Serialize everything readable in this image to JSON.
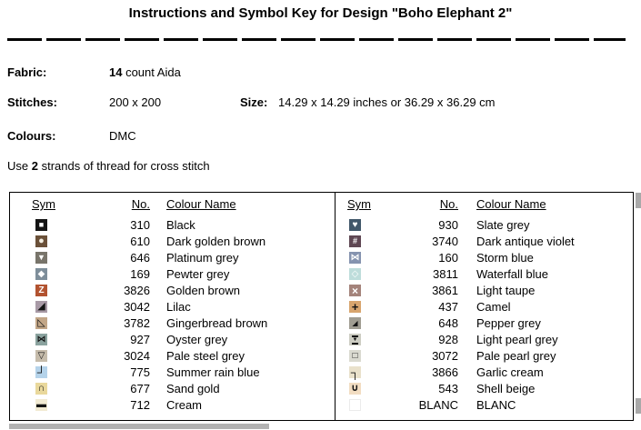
{
  "title": "Instructions and Symbol Key for Design \"Boho Elephant 2\"",
  "info": {
    "fabric_label": "Fabric:",
    "fabric_bold": "14",
    "fabric_rest": " count Aida",
    "stitches_label": "Stitches:",
    "stitches_value": "200 x 200",
    "size_label": "Size:",
    "size_value": "14.29 x 14.29 inches or 36.29 x 36.29 cm",
    "colours_label": "Colours:",
    "colours_value": "DMC",
    "strands_pre": "Use ",
    "strands_bold": "2",
    "strands_post": " strands of thread for cross stitch"
  },
  "key_table": {
    "headers": {
      "sym": "Sym",
      "no": "No.",
      "name": "Colour Name"
    },
    "left_rows": [
      {
        "glyph": "■",
        "gs": 9,
        "fg": "#ffffff",
        "bg": "#141414",
        "no": "310",
        "name": "Black"
      },
      {
        "glyph": "●",
        "gs": 11,
        "fg": "#f3eee2",
        "bg": "#6b5139",
        "no": "610",
        "name": "Dark golden brown"
      },
      {
        "glyph": "▼",
        "gs": 9,
        "fg": "#ffffff",
        "bg": "#78746a",
        "no": "646",
        "name": "Platinum grey"
      },
      {
        "glyph": "◆",
        "gs": 10,
        "fg": "#ffffff",
        "bg": "#7e8e9a",
        "no": "169",
        "name": "Pewter grey"
      },
      {
        "glyph": "Z",
        "gs": 10,
        "fg": "#ffffff",
        "bg": "#b25330",
        "no": "3826",
        "name": "Golden brown"
      },
      {
        "glyph": "◢",
        "gs": 11,
        "fg": "#141414",
        "bg": "#a89aa6",
        "no": "3042",
        "name": "Lilac"
      },
      {
        "glyph": "◺",
        "gs": 11,
        "fg": "#141414",
        "bg": "#c2a687",
        "no": "3782",
        "name": "Gingerbread brown"
      },
      {
        "glyph": "⋈",
        "gs": 10,
        "fg": "#141414",
        "bg": "#8ba39f",
        "no": "927",
        "name": "Oyster grey"
      },
      {
        "glyph": "▽",
        "gs": 10,
        "fg": "#141414",
        "bg": "#c6bcab",
        "no": "3024",
        "name": "Pale steel grey"
      },
      {
        "glyph": "┘",
        "gs": 13,
        "fg": "#141414",
        "bg": "#b5d3ea",
        "no": "775",
        "name": "Summer rain blue"
      },
      {
        "glyph": "∩",
        "gs": 11,
        "fg": "#141414",
        "bg": "#e9d89c",
        "no": "677",
        "name": "Sand gold"
      },
      {
        "glyph": "▬",
        "gs": 11,
        "fg": "#141414",
        "bg": "#f2ebd3",
        "no": "712",
        "name": "Cream"
      }
    ],
    "right_rows": [
      {
        "glyph": "♥",
        "gs": 10,
        "fg": "#ffffff",
        "bg": "#41576a",
        "no": "930",
        "name": "Slate grey"
      },
      {
        "glyph": "#",
        "gs": 9,
        "fg": "#ffffff",
        "bg": "#5f4753",
        "no": "3740",
        "name": "Dark antique violet"
      },
      {
        "glyph": "⋈",
        "gs": 10,
        "fg": "#ffffff",
        "bg": "#8593af",
        "no": "160",
        "name": "Storm blue"
      },
      {
        "glyph": "◇",
        "gs": 10,
        "fg": "#ffffff",
        "bg": "#bedddb",
        "no": "3811",
        "name": "Waterfall blue"
      },
      {
        "glyph": "×",
        "gs": 12,
        "fg": "#ffffff",
        "bg": "#a4837b",
        "no": "3861",
        "name": "Light taupe"
      },
      {
        "glyph": "+",
        "gs": 13,
        "fg": "#141414",
        "bg": "#d8a56e",
        "no": "437",
        "name": "Camel"
      },
      {
        "glyph": "◢",
        "gs": 8,
        "fg": "#141414",
        "bg": "#a09d92",
        "no": "648",
        "name": "Pepper grey"
      },
      {
        "glyph": "▼",
        "gs": 6,
        "decor": "hbars",
        "fg": "#141414",
        "bg": "#cdcdc3",
        "no": "928",
        "name": "Light pearl grey"
      },
      {
        "glyph": "□",
        "gs": 10,
        "fg": "#141414",
        "bg": "#dadad0",
        "no": "3072",
        "name": "Pale pearl grey"
      },
      {
        "glyph": "┐",
        "gs": 13,
        "fg": "#141414",
        "bg": "#e9e1cb",
        "no": "3866",
        "name": "Garlic cream"
      },
      {
        "glyph": "∪",
        "gs": 11,
        "fg": "#141414",
        "bg": "#f2ddc2",
        "no": "543",
        "name": "Shell beige"
      },
      {
        "glyph": "",
        "gs": 10,
        "fg": "#ffffff",
        "bg": "#ffffff",
        "border": "#ebebeb",
        "no": "BLANC",
        "name": "BLANC"
      }
    ]
  }
}
